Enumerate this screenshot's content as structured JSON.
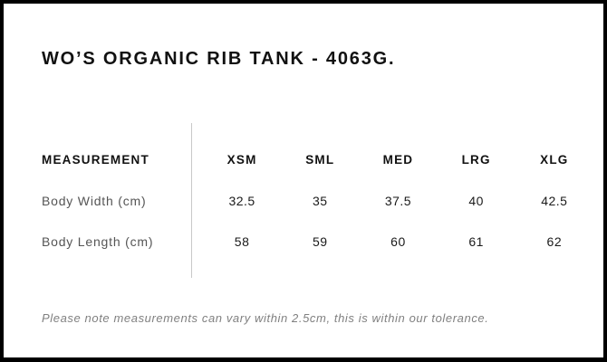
{
  "product": {
    "title": "WO’S ORGANIC RIB TANK - 4063G."
  },
  "size_chart": {
    "label_header": "MEASUREMENT",
    "size_headers": [
      "XSM",
      "SML",
      "MED",
      "LRG",
      "XLG"
    ],
    "rows": [
      {
        "label": "Body Width (cm)",
        "values": [
          "32.5",
          "35",
          "37.5",
          "40",
          "42.5"
        ]
      },
      {
        "label": "Body Length (cm)",
        "values": [
          "58",
          "59",
          "60",
          "61",
          "62"
        ]
      }
    ]
  },
  "footer": {
    "note": "Please note measurements can vary within 2.5cm, this is within our tolerance."
  },
  "chart_data": {
    "type": "table",
    "title": "WO’S ORGANIC RIB TANK - 4063G.",
    "columns": [
      "MEASUREMENT",
      "XSM",
      "SML",
      "MED",
      "LRG",
      "XLG"
    ],
    "rows": [
      [
        "Body Width (cm)",
        "32.5",
        "35",
        "37.5",
        "40",
        "42.5"
      ],
      [
        "Body Length (cm)",
        "58",
        "59",
        "60",
        "61",
        "62"
      ]
    ]
  },
  "colors": {
    "border": "#000000",
    "background": "#ffffff",
    "heading_text": "#111111",
    "label_text": "#555555",
    "value_text": "#1a1a1a",
    "divider": "#c8c8c8",
    "note_text": "#808080"
  }
}
